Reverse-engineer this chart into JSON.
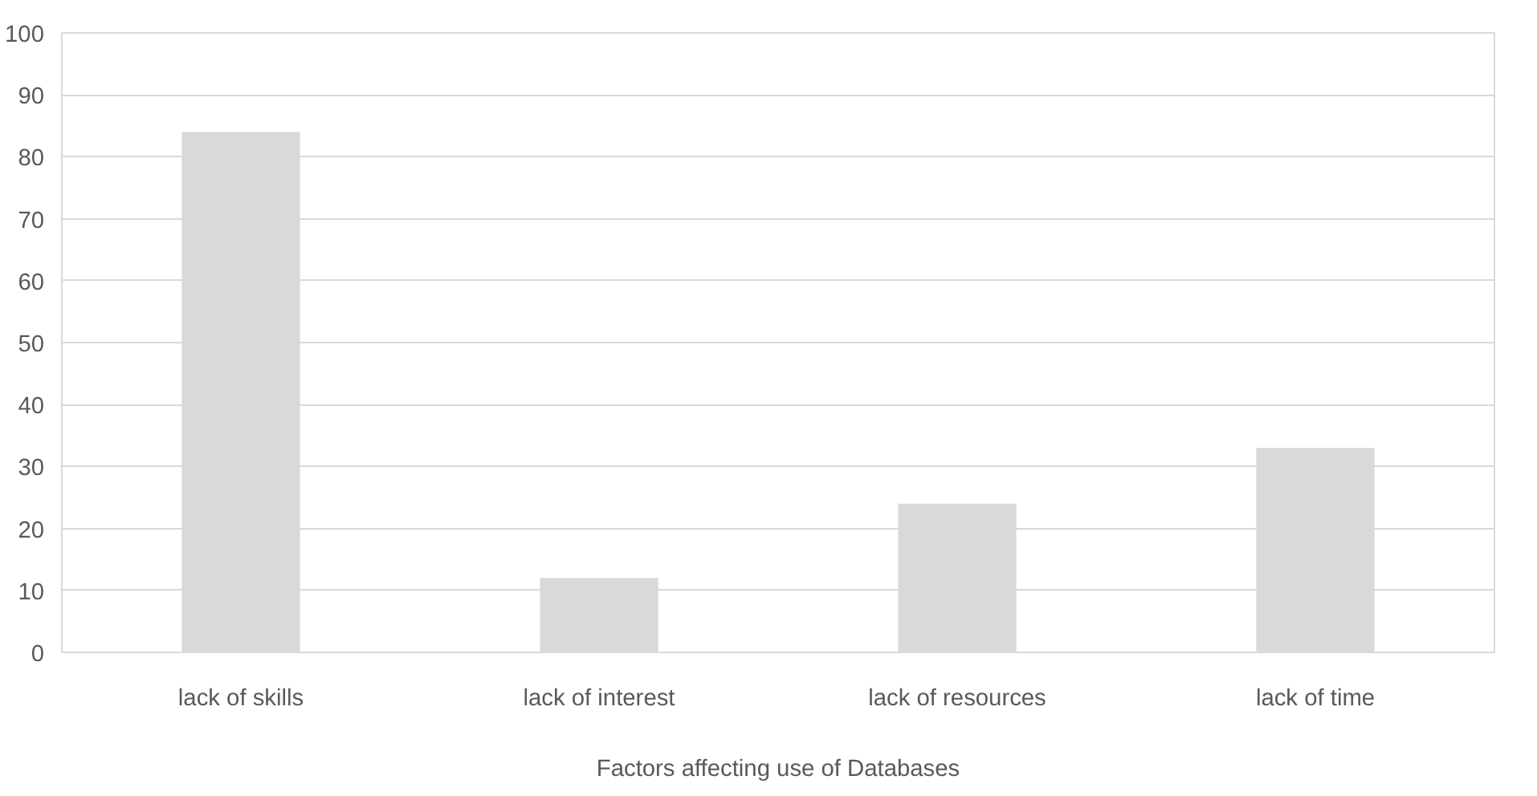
{
  "chart_data": {
    "type": "bar",
    "xlabel": "Factors affecting use of Databases",
    "categories": [
      "lack of skills",
      "lack of interest",
      "lack of resources",
      "lack of time"
    ],
    "values": [
      84,
      12,
      24,
      33
    ],
    "color": "#d9d9d9",
    "ylim": [
      0,
      100
    ],
    "yticks": [
      0,
      10,
      20,
      30,
      40,
      50,
      60,
      70,
      80,
      90,
      100
    ],
    "grid": "y"
  }
}
